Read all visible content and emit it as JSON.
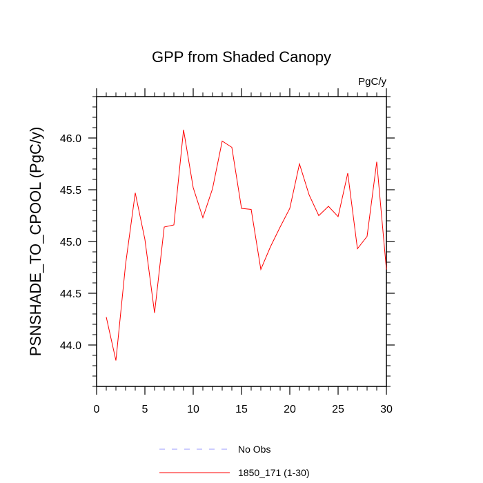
{
  "chart_data": {
    "type": "line",
    "title": "GPP from Shaded Canopy",
    "units_label": "PgC/y",
    "xlabel": "",
    "ylabel": "PSNSHADE_TO_CPOOL  (PgC/y)",
    "xlim": [
      0,
      30
    ],
    "ylim": [
      43.6,
      46.4
    ],
    "xticks": [
      0,
      5,
      10,
      15,
      20,
      25,
      30
    ],
    "xtick_labels": [
      "0",
      "5",
      "10",
      "15",
      "20",
      "25",
      "30"
    ],
    "yticks": [
      44.0,
      44.5,
      45.0,
      45.5,
      46.0
    ],
    "ytick_labels": [
      "44.0",
      "44.5",
      "45.0",
      "45.5",
      "46.0"
    ],
    "grid": false,
    "legend_position": "bottom-center",
    "series": [
      {
        "name": "1850_171 (1-30)",
        "color": "#ff0000",
        "style": "solid",
        "x": [
          1,
          2,
          3,
          4,
          5,
          6,
          7,
          8,
          9,
          10,
          11,
          12,
          13,
          14,
          15,
          16,
          17,
          18,
          19,
          20,
          21,
          22,
          23,
          24,
          25,
          26,
          27,
          28,
          29,
          30
        ],
        "y": [
          44.27,
          43.85,
          44.78,
          45.47,
          45.02,
          44.31,
          45.14,
          45.16,
          46.08,
          45.52,
          45.23,
          45.51,
          45.97,
          45.91,
          45.32,
          45.31,
          44.73,
          44.95,
          45.14,
          45.32,
          45.75,
          45.45,
          45.25,
          45.34,
          45.24,
          45.66,
          44.93,
          45.05,
          45.77,
          44.73
        ]
      }
    ],
    "legend": [
      {
        "label": "No Obs",
        "color": "#9999ff",
        "style": "dashed"
      },
      {
        "label": "1850_171 (1-30)",
        "color": "#ff0000",
        "style": "solid"
      }
    ]
  }
}
